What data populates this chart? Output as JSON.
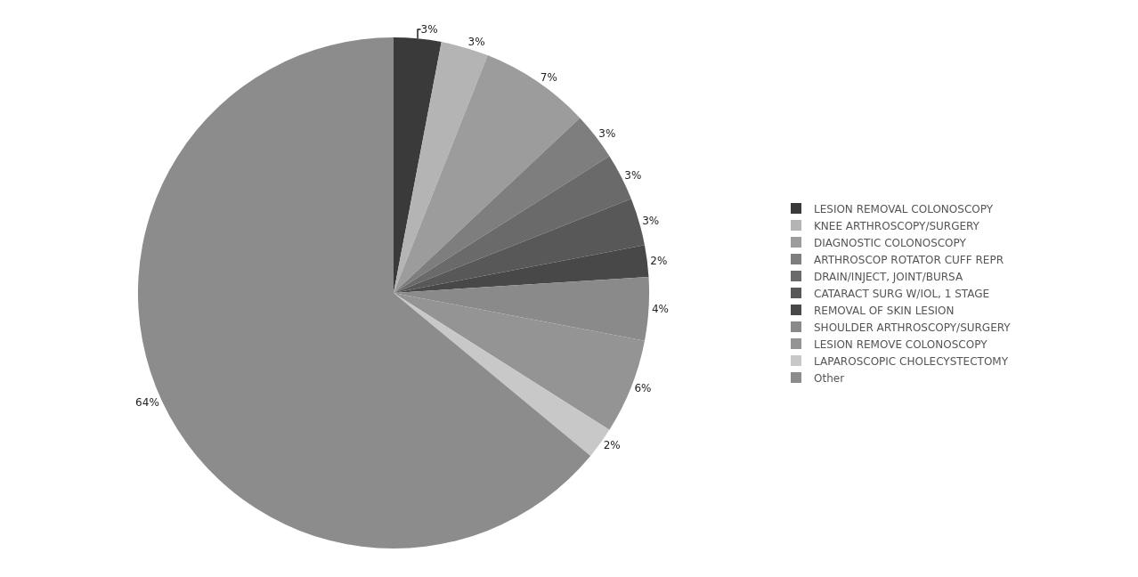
{
  "chart_data": {
    "type": "pie",
    "categories": [
      "LESION REMOVAL COLONOSCOPY",
      "KNEE ARTHROSCOPY/SURGERY",
      "DIAGNOSTIC COLONOSCOPY",
      "ARTHROSCOP ROTATOR CUFF REPR",
      "DRAIN/INJECT, JOINT/BURSA",
      "CATARACT SURG W/IOL, 1 STAGE",
      "REMOVAL OF SKIN LESION",
      "SHOULDER ARTHROSCOPY/SURGERY",
      "LESION REMOVE COLONOSCOPY",
      "LAPAROSCOPIC CHOLECYSTECTOMY",
      "Other"
    ],
    "values": [
      3,
      3,
      7,
      3,
      3,
      3,
      2,
      4,
      6,
      2,
      64
    ],
    "value_labels": [
      "3%",
      "3%",
      "7%",
      "3%",
      "3%",
      "3%",
      "2%",
      "4%",
      "6%",
      "2%",
      "64%"
    ],
    "colors": [
      "#3a3a3a",
      "#b4b4b4",
      "#9c9c9c",
      "#7e7e7e",
      "#6a6a6a",
      "#585858",
      "#484848",
      "#8a8a8a",
      "#949494",
      "#c8c8c8",
      "#8c8c8c"
    ],
    "legend": "right"
  }
}
